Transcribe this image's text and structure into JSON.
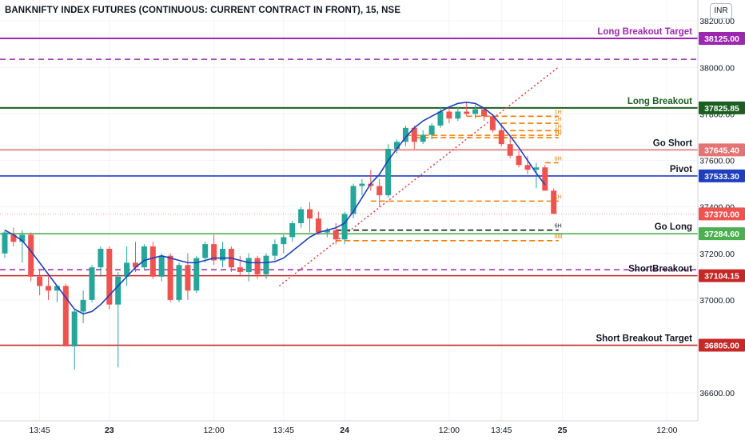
{
  "header": {
    "title": "BANKNIFTY INDEX FUTURES (CONTINUOUS: CURRENT CONTRACT IN FRONT), 15, NSE",
    "currency": "INR"
  },
  "colors": {
    "up": "#26a69a",
    "down": "#ef5350",
    "ma": "#1e3fbf",
    "purple": "#9c27b0",
    "dark_green": "#1b5e20",
    "green": "#4caf50",
    "salmon": "#e57373",
    "blue": "#1e3fbf",
    "red": "#c62828",
    "orange": "#f57c00",
    "trend": "#e53935",
    "axis_text": "#131722"
  },
  "levels": [
    {
      "id": "long-breakout-target",
      "label": "Long Breakout Target",
      "price": 38125.0,
      "badge": "38125.00",
      "color": "#9c27b0",
      "label_color": "#9c27b0"
    },
    {
      "id": "long-breakout",
      "label": "Long Breakout",
      "price": 37825.85,
      "badge": "37825.85",
      "color": "#1b5e20",
      "label_color": "#1b5e20"
    },
    {
      "id": "go-short",
      "label": "Go Short",
      "price": 37645.4,
      "badge": "37645.40",
      "color": "#e57373",
      "label_color": "#131722"
    },
    {
      "id": "pivot",
      "label": "Pivot",
      "price": 37533.3,
      "badge": "37533.30",
      "color": "#1e3fbf",
      "label_color": "#131722"
    },
    {
      "id": "go-long",
      "label": "Go Long",
      "price": 37284.6,
      "badge": "37284.60",
      "color": "#4caf50",
      "label_color": "#131722"
    },
    {
      "id": "short-breakout",
      "label": "ShortBreakout",
      "price": 37104.15,
      "badge": "37104.15",
      "color": "#c62828",
      "label_color": "#131722"
    },
    {
      "id": "short-breakout-target",
      "label": "Short Breakout Target",
      "price": 36805.0,
      "badge": "36805.00",
      "color": "#c62828",
      "label_color": "#131722"
    }
  ],
  "current_price": {
    "price": 37370.0,
    "badge": "37370.00",
    "color": "#ef5350"
  },
  "y_axis": {
    "min": 36480,
    "max": 38290,
    "ticks": [
      {
        "price": 38200,
        "label": "38200.00"
      },
      {
        "price": 38000,
        "label": "38000.00"
      },
      {
        "price": 37800,
        "label": "37800.00"
      },
      {
        "price": 37600,
        "label": "37600.00"
      },
      {
        "price": 37400,
        "label": "37400.00"
      },
      {
        "price": 37200,
        "label": "37200.00"
      },
      {
        "price": 37000,
        "label": "37000.00"
      },
      {
        "price": 36600,
        "label": "36600.00"
      }
    ]
  },
  "x_axis": {
    "ticks": [
      {
        "i": 4,
        "label": "13:45",
        "bold": false
      },
      {
        "i": 12,
        "label": "23",
        "bold": true
      },
      {
        "i": 24,
        "label": "12:00",
        "bold": false
      },
      {
        "i": 32,
        "label": "13:45",
        "bold": false
      },
      {
        "i": 39,
        "label": "24",
        "bold": true
      },
      {
        "i": 51,
        "label": "12:00",
        "bold": false
      },
      {
        "i": 57,
        "label": "13:45",
        "bold": false
      },
      {
        "i": 64,
        "label": "25",
        "bold": true
      },
      {
        "i": 76,
        "label": "12:00",
        "bold": false
      }
    ]
  },
  "dashed_levels": [
    {
      "price": 38035,
      "color": "#9c27b0"
    },
    {
      "price": 37130,
      "color": "#9c27b0"
    }
  ],
  "timeframe_lines": [
    {
      "price": 37790,
      "color": "#f57c00",
      "label": "1H",
      "i_start": 53,
      "i_end": 63
    },
    {
      "price": 37760,
      "color": "#f57c00",
      "label": "1H",
      "i_start": 57,
      "i_end": 63
    },
    {
      "price": 37728,
      "color": "#f57c00",
      "label": "1H",
      "i_start": 58,
      "i_end": 63
    },
    {
      "price": 37708,
      "color": "#f57c00",
      "label": "1H",
      "i_start": 46,
      "i_end": 63
    },
    {
      "price": 37698,
      "color": "#f57c00",
      "label": "1H",
      "i_start": 47,
      "i_end": 63
    },
    {
      "price": 37590,
      "color": "#f57c00",
      "label": "6H",
      "i_start": 62,
      "i_end": 63
    },
    {
      "price": 37425,
      "color": "#f57c00",
      "label": "1H",
      "i_start": 42,
      "i_end": 63
    },
    {
      "price": 37300,
      "color": "#131722",
      "label": "6H",
      "i_start": 38,
      "i_end": 63
    },
    {
      "price": 37255,
      "color": "#f57c00",
      "label": "6M",
      "i_start": 38,
      "i_end": 63
    }
  ],
  "trendline": {
    "i1": 31.5,
    "p1": 37060,
    "i2": 63.5,
    "p2": 38000
  },
  "chart_data": {
    "type": "candlestick",
    "title": "BANKNIFTY INDEX FUTURES (CONTINUOUS: CURRENT CONTRACT IN FRONT), 15, NSE",
    "xlabel": "",
    "ylabel": "",
    "ylim": [
      36480,
      38290
    ],
    "candles": [
      {
        "o": 37200,
        "h": 37300,
        "l": 37180,
        "c": 37290
      },
      {
        "o": 37280,
        "h": 37310,
        "l": 37230,
        "c": 37250
      },
      {
        "o": 37250,
        "h": 37300,
        "l": 37160,
        "c": 37280
      },
      {
        "o": 37280,
        "h": 37290,
        "l": 37080,
        "c": 37100
      },
      {
        "o": 37100,
        "h": 37130,
        "l": 37020,
        "c": 37060
      },
      {
        "o": 37060,
        "h": 37100,
        "l": 37000,
        "c": 37040
      },
      {
        "o": 37040,
        "h": 37060,
        "l": 36990,
        "c": 37060
      },
      {
        "o": 37060,
        "h": 37070,
        "l": 36800,
        "c": 36800
      },
      {
        "o": 36800,
        "h": 36960,
        "l": 36700,
        "c": 36950
      },
      {
        "o": 36950,
        "h": 37040,
        "l": 36900,
        "c": 37000
      },
      {
        "o": 37000,
        "h": 37150,
        "l": 36990,
        "c": 37140
      },
      {
        "o": 37140,
        "h": 37230,
        "l": 37100,
        "c": 37220
      },
      {
        "o": 37220,
        "h": 37230,
        "l": 36960,
        "c": 36980
      },
      {
        "o": 36980,
        "h": 37120,
        "l": 36710,
        "c": 37100
      },
      {
        "o": 37100,
        "h": 37230,
        "l": 37060,
        "c": 37160
      },
      {
        "o": 37160,
        "h": 37250,
        "l": 37120,
        "c": 37140
      },
      {
        "o": 37140,
        "h": 37240,
        "l": 37130,
        "c": 37230
      },
      {
        "o": 37230,
        "h": 37250,
        "l": 37090,
        "c": 37100
      },
      {
        "o": 37100,
        "h": 37200,
        "l": 37080,
        "c": 37190
      },
      {
        "o": 37190,
        "h": 37200,
        "l": 36990,
        "c": 37000
      },
      {
        "o": 37000,
        "h": 37160,
        "l": 36990,
        "c": 37150
      },
      {
        "o": 37150,
        "h": 37200,
        "l": 37000,
        "c": 37040
      },
      {
        "o": 37040,
        "h": 37190,
        "l": 37030,
        "c": 37180
      },
      {
        "o": 37180,
        "h": 37250,
        "l": 37160,
        "c": 37240
      },
      {
        "o": 37240,
        "h": 37280,
        "l": 37150,
        "c": 37170
      },
      {
        "o": 37170,
        "h": 37250,
        "l": 37140,
        "c": 37220
      },
      {
        "o": 37220,
        "h": 37230,
        "l": 37120,
        "c": 37140
      },
      {
        "o": 37140,
        "h": 37190,
        "l": 37100,
        "c": 37120
      },
      {
        "o": 37120,
        "h": 37200,
        "l": 37080,
        "c": 37180
      },
      {
        "o": 37180,
        "h": 37190,
        "l": 37090,
        "c": 37110
      },
      {
        "o": 37110,
        "h": 37200,
        "l": 37090,
        "c": 37190
      },
      {
        "o": 37190,
        "h": 37260,
        "l": 37170,
        "c": 37240
      },
      {
        "o": 37240,
        "h": 37280,
        "l": 37200,
        "c": 37270
      },
      {
        "o": 37270,
        "h": 37340,
        "l": 37250,
        "c": 37330
      },
      {
        "o": 37330,
        "h": 37400,
        "l": 37310,
        "c": 37390
      },
      {
        "o": 37390,
        "h": 37420,
        "l": 37290,
        "c": 37350
      },
      {
        "o": 37350,
        "h": 37380,
        "l": 37280,
        "c": 37290
      },
      {
        "o": 37290,
        "h": 37310,
        "l": 37270,
        "c": 37300
      },
      {
        "o": 37300,
        "h": 37330,
        "l": 37240,
        "c": 37260
      },
      {
        "o": 37260,
        "h": 37380,
        "l": 37240,
        "c": 37370
      },
      {
        "o": 37370,
        "h": 37500,
        "l": 37350,
        "c": 37490
      },
      {
        "o": 37490,
        "h": 37520,
        "l": 37450,
        "c": 37500
      },
      {
        "o": 37500,
        "h": 37560,
        "l": 37470,
        "c": 37490
      },
      {
        "o": 37490,
        "h": 37520,
        "l": 37400,
        "c": 37450
      },
      {
        "o": 37450,
        "h": 37670,
        "l": 37440,
        "c": 37650
      },
      {
        "o": 37650,
        "h": 37690,
        "l": 37630,
        "c": 37680
      },
      {
        "o": 37680,
        "h": 37750,
        "l": 37660,
        "c": 37740
      },
      {
        "o": 37740,
        "h": 37750,
        "l": 37650,
        "c": 37680
      },
      {
        "o": 37680,
        "h": 37730,
        "l": 37670,
        "c": 37710
      },
      {
        "o": 37710,
        "h": 37760,
        "l": 37690,
        "c": 37750
      },
      {
        "o": 37750,
        "h": 37830,
        "l": 37740,
        "c": 37810
      },
      {
        "o": 37810,
        "h": 37830,
        "l": 37760,
        "c": 37780
      },
      {
        "o": 37780,
        "h": 37830,
        "l": 37770,
        "c": 37810
      },
      {
        "o": 37810,
        "h": 37850,
        "l": 37790,
        "c": 37800
      },
      {
        "o": 37800,
        "h": 37840,
        "l": 37780,
        "c": 37820
      },
      {
        "o": 37820,
        "h": 37830,
        "l": 37770,
        "c": 37790
      },
      {
        "o": 37790,
        "h": 37800,
        "l": 37720,
        "c": 37730
      },
      {
        "o": 37730,
        "h": 37760,
        "l": 37660,
        "c": 37670
      },
      {
        "o": 37670,
        "h": 37700,
        "l": 37610,
        "c": 37620
      },
      {
        "o": 37620,
        "h": 37640,
        "l": 37570,
        "c": 37580
      },
      {
        "o": 37580,
        "h": 37620,
        "l": 37540,
        "c": 37560
      },
      {
        "o": 37560,
        "h": 37590,
        "l": 37480,
        "c": 37570
      },
      {
        "o": 37570,
        "h": 37580,
        "l": 37470,
        "c": 37470
      },
      {
        "o": 37470,
        "h": 37480,
        "l": 37370,
        "c": 37370
      }
    ],
    "ma": [
      37300,
      37280,
      37255,
      37210,
      37160,
      37110,
      37060,
      37010,
      36960,
      36940,
      36950,
      36980,
      37020,
      37060,
      37100,
      37140,
      37170,
      37180,
      37190,
      37180,
      37170,
      37160,
      37160,
      37170,
      37180,
      37180,
      37180,
      37170,
      37160,
      37160,
      37160,
      37165,
      37180,
      37210,
      37240,
      37270,
      37290,
      37300,
      37310,
      37330,
      37380,
      37440,
      37500,
      37540,
      37600,
      37650,
      37700,
      37740,
      37770,
      37790,
      37810,
      37830,
      37845,
      37850,
      37845,
      37825,
      37795,
      37750,
      37705,
      37655,
      37600,
      37545,
      37495
    ]
  }
}
